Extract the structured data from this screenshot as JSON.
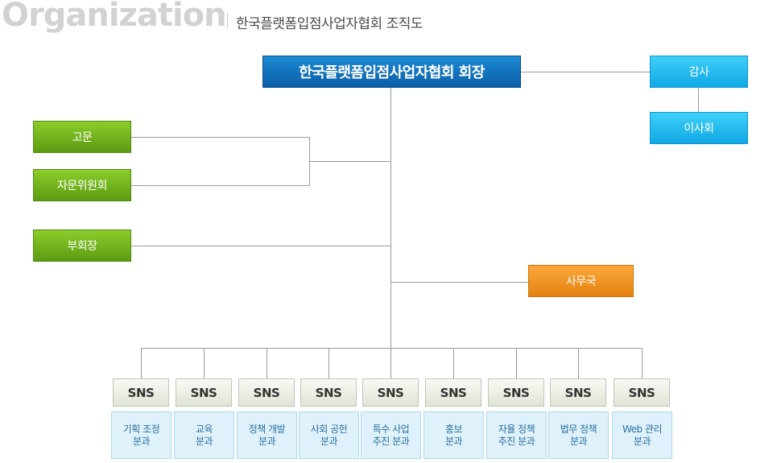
{
  "header": {
    "title": "Organization",
    "subtitle": "한국플랫폼입점사업자협회 조직도"
  },
  "chart": {
    "president": "한국플랫폼입점사업자협회 회장",
    "auditor": "감사",
    "board": "이사회",
    "advisor": "고문",
    "advisory_committee": "자문위원회",
    "vice_president": "부회장",
    "secretariat": "사무국",
    "sns_label": "SNS",
    "departments": [
      {
        "line1": "기획 조정",
        "line2": "분과"
      },
      {
        "line1": "교육",
        "line2": "분과"
      },
      {
        "line1": "정책 개발",
        "line2": "분과"
      },
      {
        "line1": "사회 공헌",
        "line2": "분과"
      },
      {
        "line1": "특수 사업",
        "line2": "추진 분과"
      },
      {
        "line1": "홍보",
        "line2": "분과"
      },
      {
        "line1": "자율 정책",
        "line2": "추진 분과"
      },
      {
        "line1": "법무 정책",
        "line2": "분과"
      },
      {
        "line1": "Web 관리",
        "line2": "분과"
      }
    ]
  },
  "colors": {
    "president": "#0b5ea8",
    "cyan": "#10a8e6",
    "green": "#5c9b12",
    "orange": "#e5820f",
    "line": "#9a9a9a"
  }
}
